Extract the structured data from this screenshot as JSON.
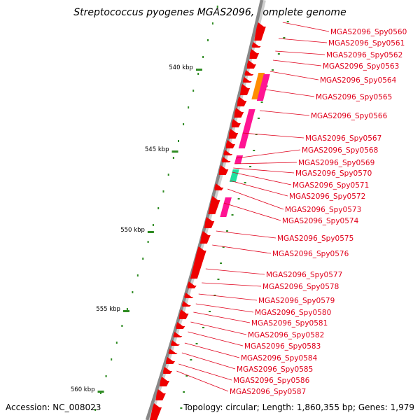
{
  "title": "Streptococcus pyogenes MGAS2096, complete genome",
  "footer": {
    "accession": "Accession: NC_008023",
    "topology": "Topology: circular; Length: 1,860,355 bp; Genes: 1,979"
  },
  "colors": {
    "cds": "#ee0000",
    "label": "#e0001b",
    "backbone": "#888888",
    "tick": "#2e8b22",
    "pink": "#ff1493",
    "orange": "#ff8c00",
    "teal": "#20e0a0"
  },
  "scale_labels": [
    "540 kbp",
    "545 kbp",
    "550 kbp",
    "555 kbp",
    "560 kbp"
  ],
  "gene_labels": [
    "MGAS2096_Spy0560",
    "MGAS2096_Spy0561",
    "MGAS2096_Spy0562",
    "MGAS2096_Spy0563",
    "MGAS2096_Spy0564",
    "MGAS2096_Spy0565",
    "MGAS2096_Spy0566",
    "MGAS2096_Spy0567",
    "MGAS2096_Spy0568",
    "MGAS2096_Spy0569",
    "MGAS2096_Spy0570",
    "MGAS2096_Spy0571",
    "MGAS2096_Spy0572",
    "MGAS2096_Spy0573",
    "MGAS2096_Spy0574",
    "MGAS2096_Spy0575",
    "MGAS2096_Spy0576",
    "MGAS2096_Spy0577",
    "MGAS2096_Spy0578",
    "MGAS2096_Spy0579",
    "MGAS2096_Spy0580",
    "MGAS2096_Spy0581",
    "MGAS2096_Spy0582",
    "MGAS2096_Spy0583",
    "MGAS2096_Spy0584",
    "MGAS2096_Spy0585",
    "MGAS2096_Spy0586",
    "MGAS2096_Spy0587"
  ]
}
